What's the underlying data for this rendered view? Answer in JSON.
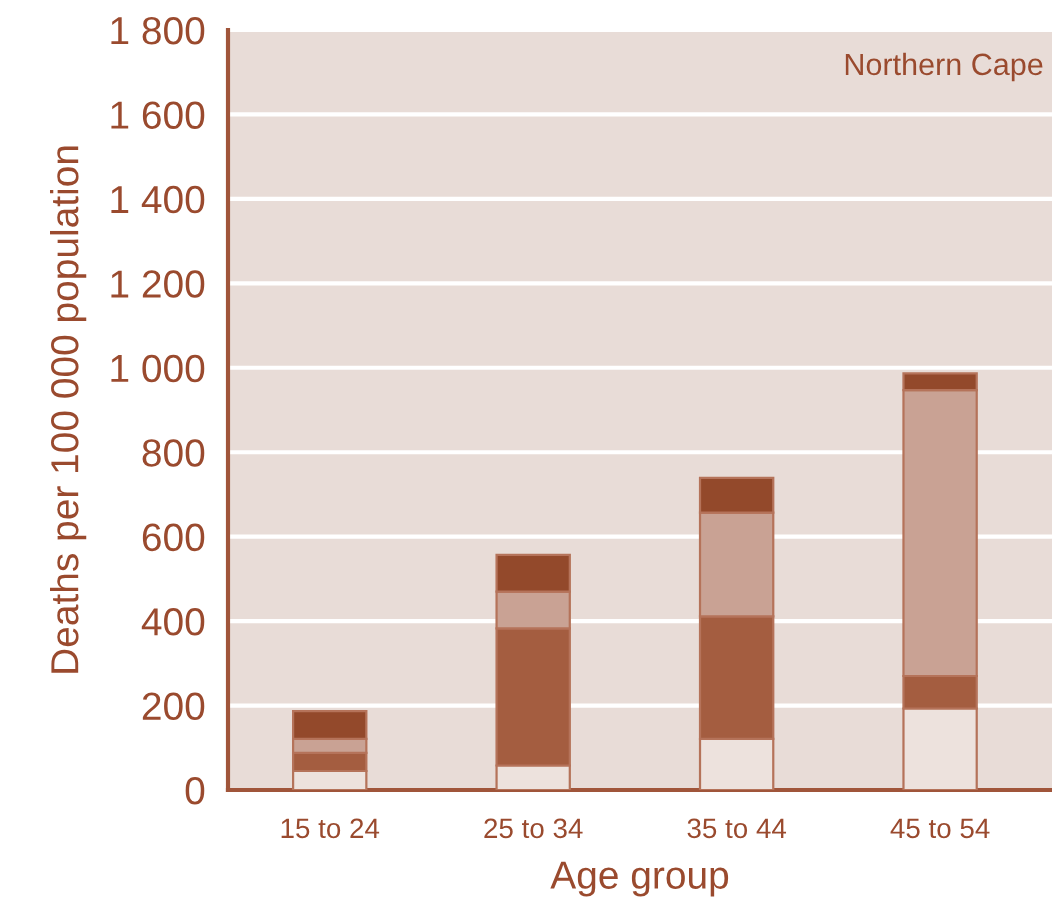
{
  "chart_data": {
    "type": "bar",
    "stacked": true,
    "xlabel": "Age group",
    "ylabel": "Deaths per 100 000 population",
    "annotations": [
      "Northern Cape"
    ],
    "categories": [
      "15 to 24",
      "25 to 34",
      "35 to 44",
      "45 to 54"
    ],
    "series": [
      {
        "color": "#ede2dd",
        "values": [
          45,
          58,
          121,
          193
        ]
      },
      {
        "color": "#a45d40",
        "values": [
          43,
          325,
          290,
          77
        ]
      },
      {
        "color": "#c9a294",
        "values": [
          33,
          87,
          246,
          677
        ]
      },
      {
        "color": "#93492b",
        "values": [
          66,
          87,
          82,
          40
        ]
      }
    ],
    "ylim": [
      0,
      1800
    ],
    "yticks": [
      0,
      200,
      400,
      600,
      800,
      {
        "value": 1000,
        "label": "1 000"
      },
      {
        "value": 1200,
        "label": "1 200"
      },
      {
        "value": 1400,
        "label": "1 400"
      },
      {
        "value": 1600,
        "label": "1 600"
      },
      {
        "value": 1800,
        "label": "1 800"
      }
    ],
    "grid": "y"
  }
}
